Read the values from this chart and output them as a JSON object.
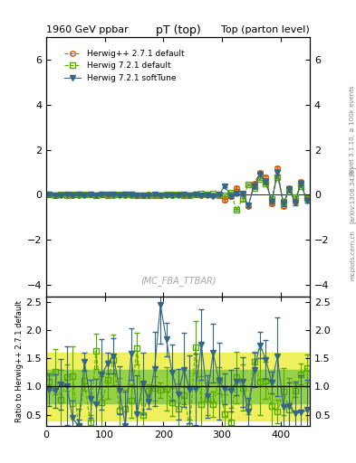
{
  "title_left": "1960 GeV ppbar",
  "title_right": "Top (parton level)",
  "main_title": "pT (top)",
  "xlabel": "",
  "ylabel_main": "",
  "ylabel_ratio": "Ratio to Herwig++ 2.7.1 default",
  "watermark": "(MC_FBA_TTBAR)",
  "rivet_label": "Rivet 3.1.10, ≥ 100k events",
  "arxiv_label": "[arXiv:1306.3436]",
  "mcplots_label": "mcplots.cern.ch",
  "xlim": [
    0,
    450
  ],
  "main_ylim": [
    -4.5,
    7
  ],
  "ratio_ylim": [
    0.3,
    2.6
  ],
  "ratio_yticks": [
    0.5,
    1.0,
    1.5,
    2.0,
    2.5
  ],
  "main_yticks": [
    -4,
    -2,
    0,
    2,
    4,
    6
  ],
  "series": [
    {
      "label": "Herwig++ 2.7.1 default",
      "color": "#d45500",
      "linestyle": "--",
      "marker": "o",
      "markerfacecolor": "none",
      "markersize": 4
    },
    {
      "label": "Herwig 7.2.1 default",
      "color": "#55aa00",
      "linestyle": "--",
      "marker": "s",
      "markerfacecolor": "none",
      "markersize": 4
    },
    {
      "label": "Herwig 7.2.1 softTune",
      "color": "#336688",
      "linestyle": "-",
      "marker": "v",
      "markerfacecolor": "#336688",
      "markersize": 4
    }
  ],
  "ratio_band_green": "#88cc44",
  "ratio_band_yellow": "#eeee44",
  "ratio_line_color": "#336688",
  "ratio_ref_line": 1.0,
  "background_color": "#ffffff"
}
